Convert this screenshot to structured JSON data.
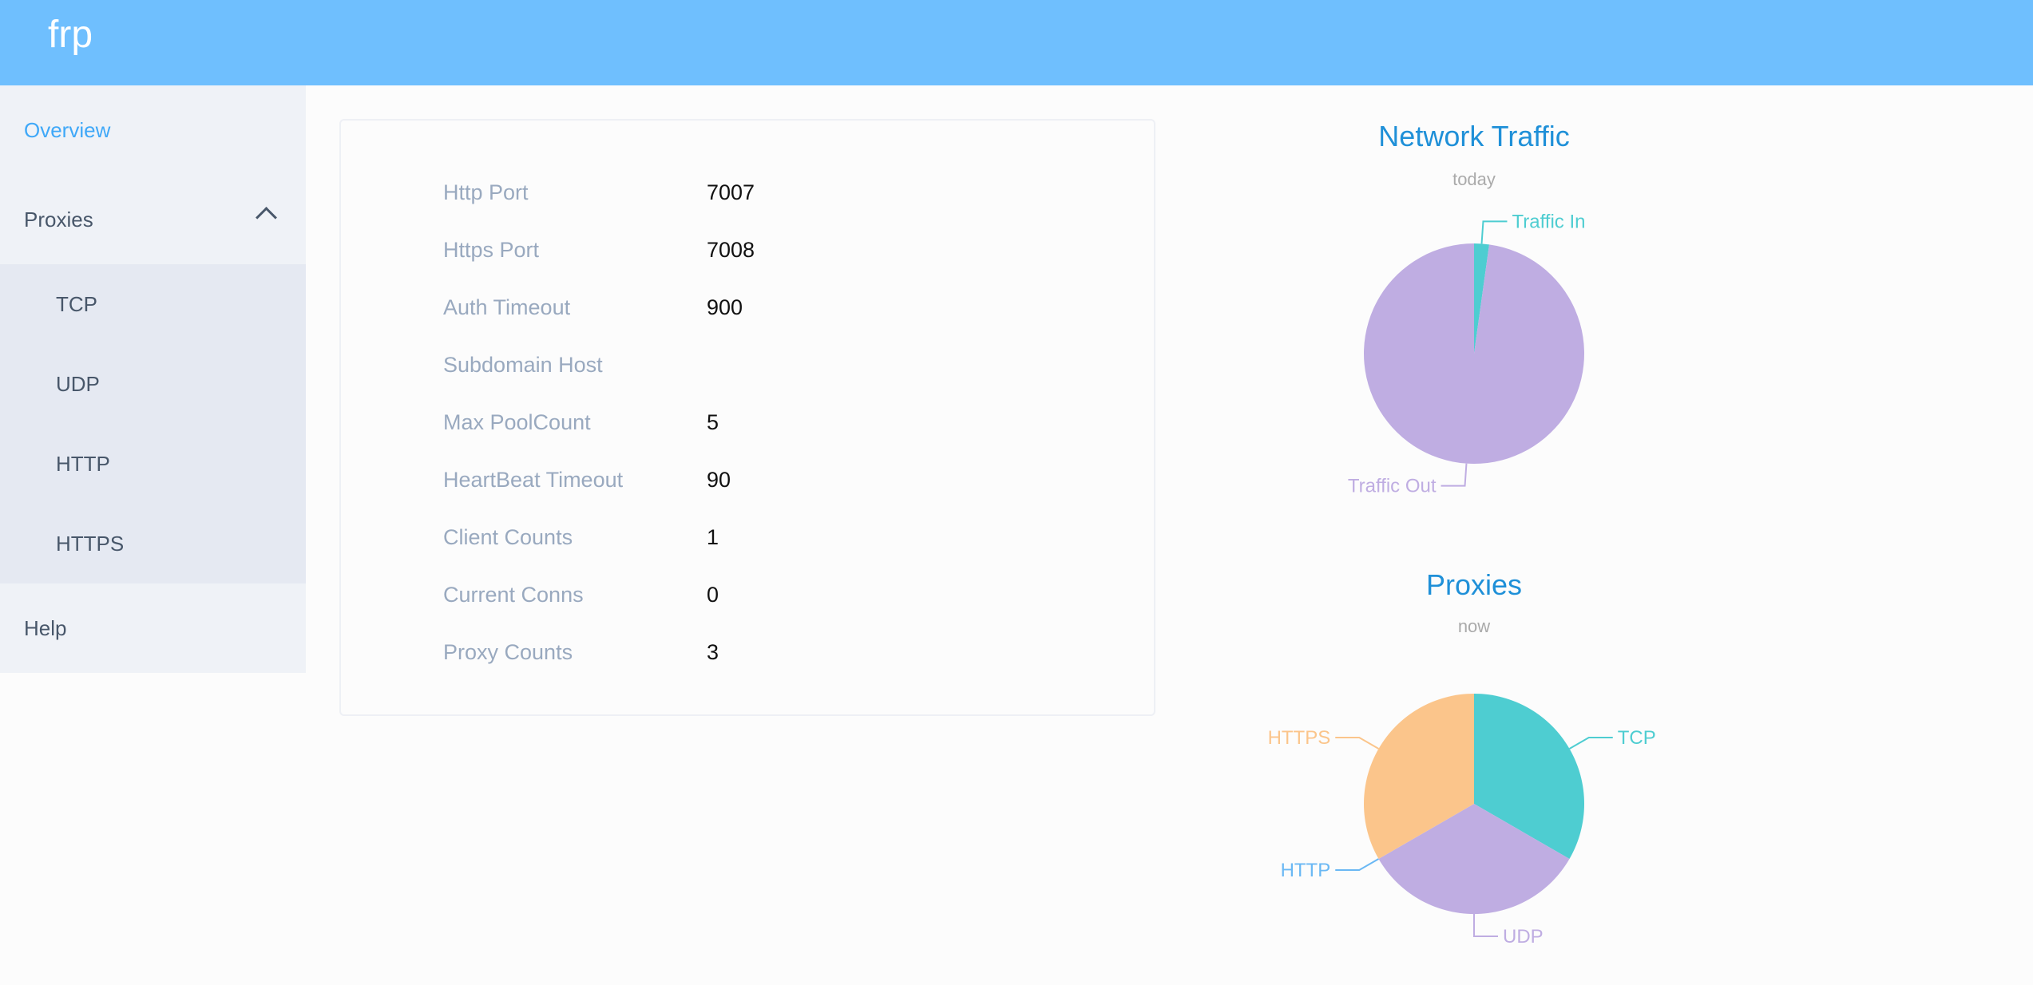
{
  "header": {
    "logo": "frp",
    "bg_color": "#6fbffe"
  },
  "sidebar": {
    "items": [
      {
        "label": "Overview",
        "active": true
      },
      {
        "label": "Proxies",
        "expanded": true,
        "icon": "chevron-up-icon",
        "children": [
          {
            "label": "TCP"
          },
          {
            "label": "UDP"
          },
          {
            "label": "HTTP"
          },
          {
            "label": "HTTPS"
          }
        ]
      },
      {
        "label": "Help"
      }
    ],
    "active_color": "#3fa8f8"
  },
  "server_info": [
    {
      "label": "Http Port",
      "value": "7007"
    },
    {
      "label": "Https Port",
      "value": "7008"
    },
    {
      "label": "Auth Timeout",
      "value": "900"
    },
    {
      "label": "Subdomain Host",
      "value": ""
    },
    {
      "label": "Max PoolCount",
      "value": "5"
    },
    {
      "label": "HeartBeat Timeout",
      "value": "90"
    },
    {
      "label": "Client Counts",
      "value": "1"
    },
    {
      "label": "Current Conns",
      "value": "0"
    },
    {
      "label": "Proxy Counts",
      "value": "3"
    }
  ],
  "chart_data": [
    {
      "type": "pie",
      "title": "Network Traffic",
      "subtitle": "today",
      "categories": [
        "Traffic In",
        "Traffic Out"
      ],
      "values": [
        2.2,
        97.8
      ],
      "colors": [
        "#4ecdd1",
        "#bfade2"
      ]
    },
    {
      "type": "pie",
      "title": "Proxies",
      "subtitle": "now",
      "categories": [
        "TCP",
        "UDP",
        "HTTP",
        "HTTPS"
      ],
      "values": [
        1,
        1,
        0,
        1
      ],
      "colors": [
        "#4ecdd1",
        "#bfade2",
        "#6ab8f4",
        "#fbc58b"
      ]
    }
  ]
}
